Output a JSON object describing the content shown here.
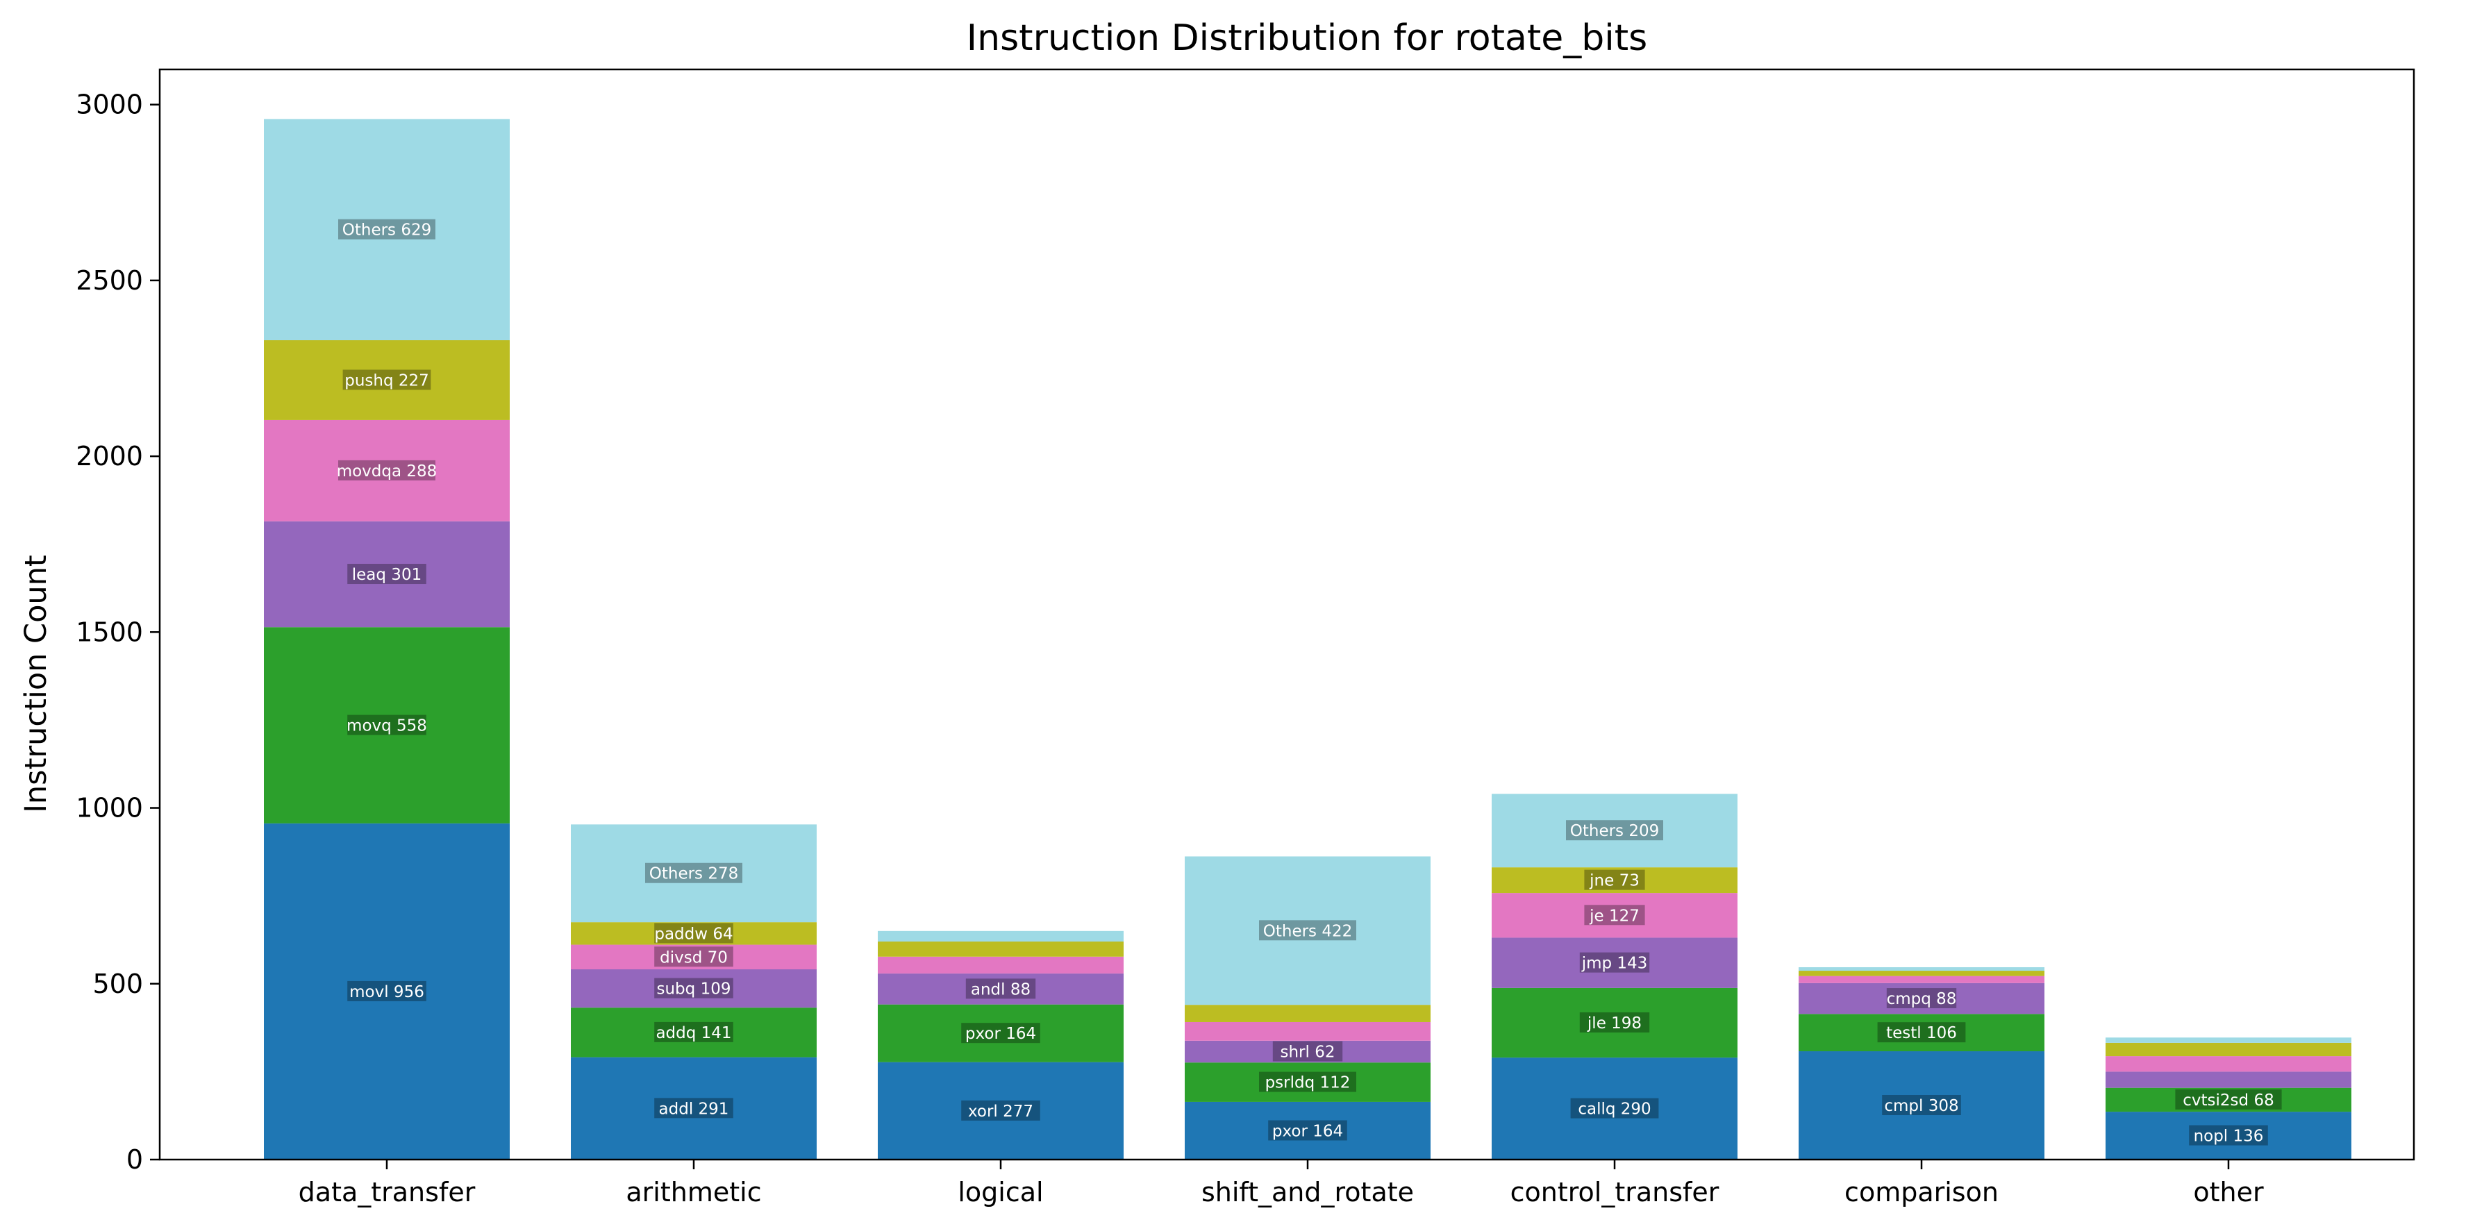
{
  "chart_data": {
    "type": "bar",
    "stacked": true,
    "title": "Instruction Distribution for rotate_bits",
    "xlabel": "",
    "ylabel": "Instruction Count",
    "ylim": [
      0,
      3100
    ],
    "yticks": [
      0,
      500,
      1000,
      1500,
      2000,
      2500,
      3000
    ],
    "grid": false,
    "legend": "none",
    "categories": [
      "data_transfer",
      "arithmetic",
      "logical",
      "shift_and_rotate",
      "control_transfer",
      "comparison",
      "other"
    ],
    "level_colors": [
      "#1f77b4",
      "#2ca02c",
      "#9467bd",
      "#e377c2",
      "#bcbd22",
      "#9edae5"
    ],
    "stacks": [
      {
        "category": "data_transfer",
        "segments": [
          {
            "label": "movl 956",
            "value": 956,
            "show": true
          },
          {
            "label": "movq 558",
            "value": 558,
            "show": true
          },
          {
            "label": "leaq 301",
            "value": 301,
            "show": true
          },
          {
            "label": "movdqa 288",
            "value": 288,
            "show": true
          },
          {
            "label": "pushq 227",
            "value": 227,
            "show": true
          },
          {
            "label": "Others 629",
            "value": 629,
            "show": true
          }
        ]
      },
      {
        "category": "arithmetic",
        "segments": [
          {
            "label": "addl 291",
            "value": 291,
            "show": true
          },
          {
            "label": "addq 141",
            "value": 141,
            "show": true
          },
          {
            "label": "subq 109",
            "value": 109,
            "show": true
          },
          {
            "label": "divsd 70",
            "value": 70,
            "show": true
          },
          {
            "label": "paddw 64",
            "value": 64,
            "show": true
          },
          {
            "label": "Others 278",
            "value": 278,
            "show": true
          }
        ]
      },
      {
        "category": "logical",
        "segments": [
          {
            "label": "xorl 277",
            "value": 277,
            "show": true
          },
          {
            "label": "pxor 164",
            "value": 164,
            "show": true
          },
          {
            "label": "andl 88",
            "value": 88,
            "show": true
          },
          {
            "label": "",
            "value": 48,
            "show": false
          },
          {
            "label": "",
            "value": 43,
            "show": false
          },
          {
            "label": "",
            "value": 30,
            "show": false
          }
        ]
      },
      {
        "category": "shift_and_rotate",
        "segments": [
          {
            "label": "pxor 164",
            "value": 164,
            "show": true
          },
          {
            "label": "psrldq 112",
            "value": 112,
            "show": true
          },
          {
            "label": "shrl 62",
            "value": 62,
            "show": true
          },
          {
            "label": "",
            "value": 53,
            "show": false
          },
          {
            "label": "",
            "value": 49,
            "show": false
          },
          {
            "label": "Others 422",
            "value": 422,
            "show": true
          }
        ]
      },
      {
        "category": "control_transfer",
        "segments": [
          {
            "label": "callq 290",
            "value": 290,
            "show": true
          },
          {
            "label": "jle 198",
            "value": 198,
            "show": true
          },
          {
            "label": "jmp 143",
            "value": 143,
            "show": true
          },
          {
            "label": "je 127",
            "value": 127,
            "show": true
          },
          {
            "label": "jne 73",
            "value": 73,
            "show": true
          },
          {
            "label": "Others 209",
            "value": 209,
            "show": true
          }
        ]
      },
      {
        "category": "comparison",
        "segments": [
          {
            "label": "cmpl 308",
            "value": 308,
            "show": true
          },
          {
            "label": "testl 106",
            "value": 106,
            "show": true
          },
          {
            "label": "cmpq 88",
            "value": 88,
            "show": true
          },
          {
            "label": "",
            "value": 20,
            "show": false
          },
          {
            "label": "",
            "value": 15,
            "show": false
          },
          {
            "label": "",
            "value": 10,
            "show": false
          }
        ]
      },
      {
        "category": "other",
        "segments": [
          {
            "label": "nopl 136",
            "value": 136,
            "show": true
          },
          {
            "label": "cvtsi2sd 68",
            "value": 68,
            "show": true
          },
          {
            "label": "",
            "value": 46,
            "show": false
          },
          {
            "label": "",
            "value": 44,
            "show": false
          },
          {
            "label": "",
            "value": 38,
            "show": false
          },
          {
            "label": "",
            "value": 15,
            "show": false
          }
        ]
      }
    ]
  }
}
